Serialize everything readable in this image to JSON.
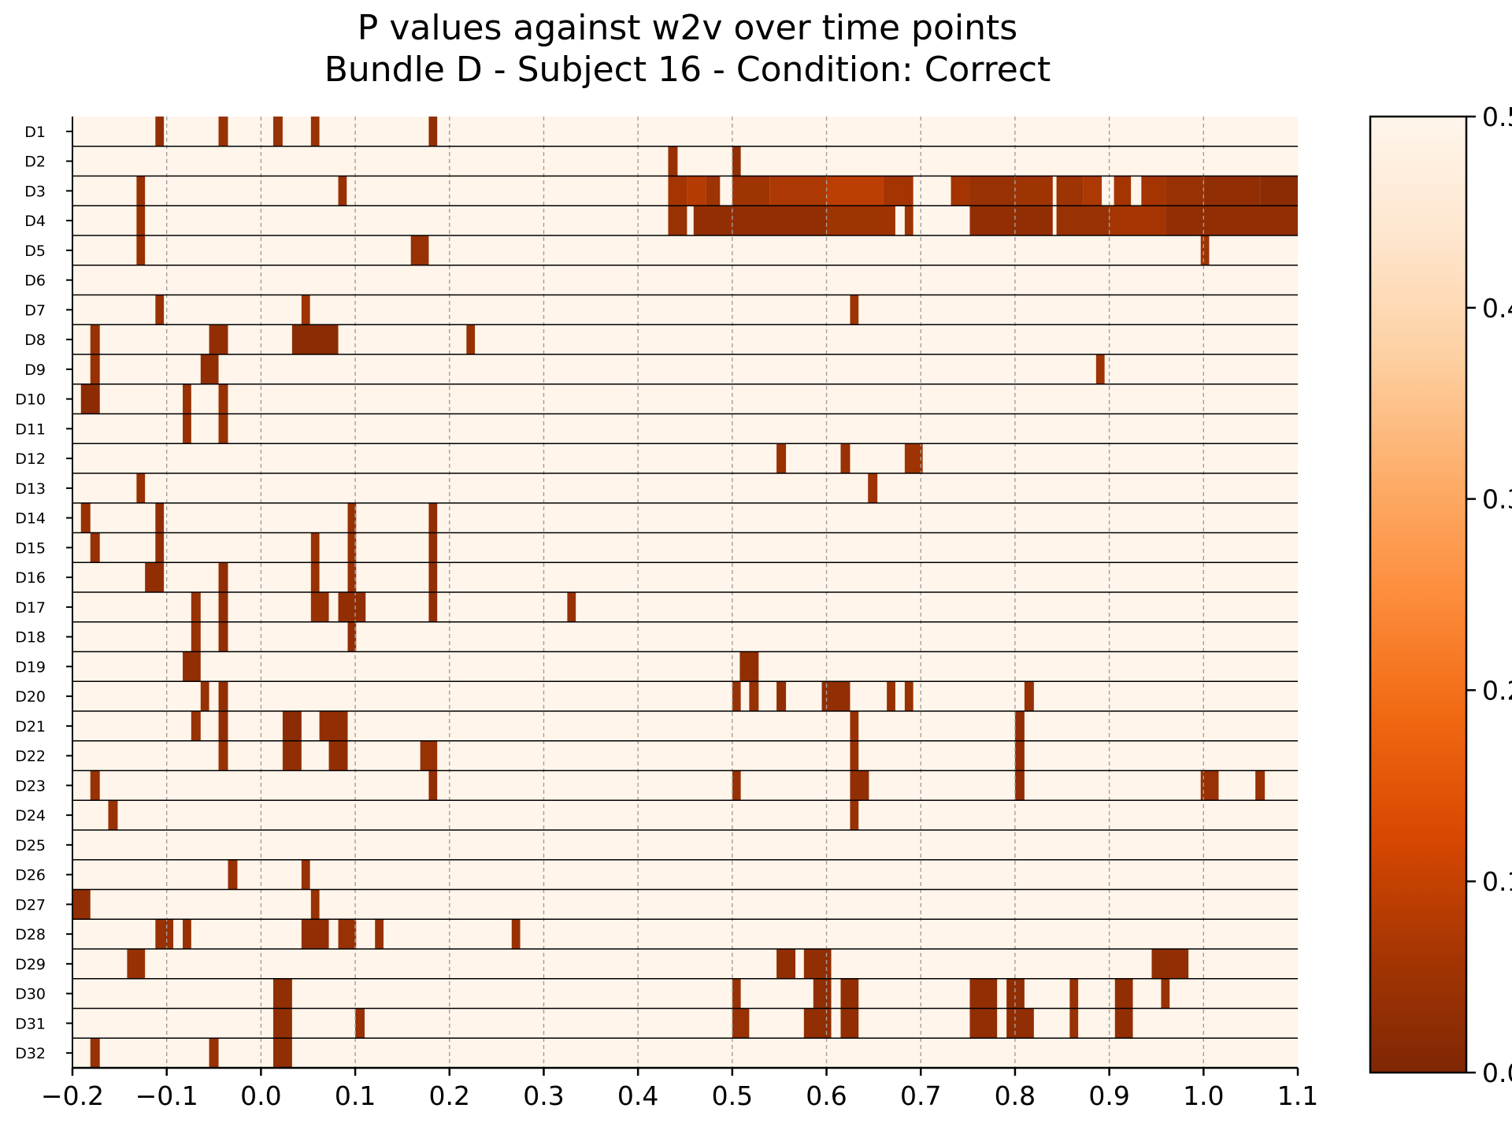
{
  "chart_data": {
    "type": "heatmap",
    "title": "P values against w2v over time points",
    "subtitle": "Bundle D - Subject 16 - Condition: Correct",
    "xlabel": "",
    "ylabel": "",
    "xlim": [
      -0.2,
      1.1
    ],
    "x_ticks": [
      "−0.2",
      "−0.1",
      "0.0",
      "0.1",
      "0.2",
      "0.3",
      "0.4",
      "0.5",
      "0.6",
      "0.7",
      "0.8",
      "0.9",
      "1.0",
      "1.1"
    ],
    "x_tick_values": [
      -0.2,
      -0.1,
      0.0,
      0.1,
      0.2,
      0.3,
      0.4,
      0.5,
      0.6,
      0.7,
      0.8,
      0.9,
      1.0,
      1.1
    ],
    "grid": "vertical dashed at x ticks",
    "rows": [
      "D1",
      "D2",
      "D3",
      "D4",
      "D5",
      "D6",
      "D7",
      "D8",
      "D9",
      "D10",
      "D11",
      "D12",
      "D13",
      "D14",
      "D15",
      "D16",
      "D17",
      "D18",
      "D19",
      "D20",
      "D21",
      "D22",
      "D23",
      "D24",
      "D25",
      "D26",
      "D27",
      "D28",
      "D29",
      "D30",
      "D31",
      "D32"
    ],
    "background_p": 0.5,
    "colorbar": {
      "min": 0.0,
      "max": 0.5,
      "ticks": [
        "0.0",
        "0.1",
        "0.2",
        "0.3",
        "0.4",
        "0.5"
      ],
      "tick_values": [
        0.0,
        0.1,
        0.2,
        0.3,
        0.4,
        0.5
      ],
      "colormap": "Oranges_r",
      "colors": [
        "#7f2704",
        "#a63603",
        "#d94801",
        "#f16913",
        "#fd8d3c",
        "#fdae6b",
        "#fdd0a2",
        "#fee6ce",
        "#fff5eb"
      ]
    },
    "segments": {
      "D1": [
        [
          -0.112,
          -0.103,
          0.03
        ],
        [
          -0.045,
          -0.035,
          0.04
        ],
        [
          0.013,
          0.023,
          0.04
        ],
        [
          0.053,
          0.062,
          0.04
        ],
        [
          0.178,
          0.187,
          0.03
        ]
      ],
      "D2": [
        [
          0.432,
          0.442,
          0.04
        ],
        [
          0.5,
          0.509,
          0.03
        ]
      ],
      "D3": [
        [
          -0.132,
          -0.123,
          0.04
        ],
        [
          0.082,
          0.091,
          0.04
        ],
        [
          0.432,
          0.452,
          0.06
        ],
        [
          0.452,
          0.472,
          0.08
        ],
        [
          0.472,
          0.487,
          0.05
        ],
        [
          0.5,
          0.54,
          0.05
        ],
        [
          0.54,
          0.6,
          0.07
        ],
        [
          0.6,
          0.66,
          0.09
        ],
        [
          0.66,
          0.692,
          0.06
        ],
        [
          0.732,
          0.752,
          0.06
        ],
        [
          0.752,
          0.8,
          0.04
        ],
        [
          0.8,
          0.84,
          0.05
        ],
        [
          0.844,
          0.872,
          0.05
        ],
        [
          0.872,
          0.892,
          0.07
        ],
        [
          0.905,
          0.923,
          0.06
        ],
        [
          0.934,
          0.96,
          0.06
        ],
        [
          0.96,
          1.0,
          0.04
        ],
        [
          1.0,
          1.06,
          0.03
        ],
        [
          1.06,
          1.1,
          0.02
        ]
      ],
      "D4": [
        [
          -0.132,
          -0.123,
          0.04
        ],
        [
          0.432,
          0.452,
          0.04
        ],
        [
          0.459,
          0.5,
          0.03
        ],
        [
          0.5,
          0.6,
          0.03
        ],
        [
          0.6,
          0.673,
          0.05
        ],
        [
          0.683,
          0.692,
          0.05
        ],
        [
          0.752,
          0.84,
          0.03
        ],
        [
          0.844,
          0.9,
          0.04
        ],
        [
          0.9,
          0.96,
          0.06
        ],
        [
          0.96,
          1.1,
          0.03
        ]
      ],
      "D5": [
        [
          -0.132,
          -0.123,
          0.04
        ],
        [
          0.159,
          0.178,
          0.04
        ],
        [
          0.997,
          1.006,
          0.05
        ]
      ],
      "D6": [],
      "D7": [
        [
          -0.112,
          -0.103,
          0.04
        ],
        [
          0.043,
          0.052,
          0.05
        ],
        [
          0.625,
          0.634,
          0.05
        ]
      ],
      "D8": [
        [
          -0.181,
          -0.171,
          0.04
        ],
        [
          -0.055,
          -0.035,
          0.03
        ],
        [
          0.033,
          0.082,
          0.02
        ],
        [
          0.218,
          0.227,
          0.04
        ]
      ],
      "D9": [
        [
          -0.181,
          -0.171,
          0.04
        ],
        [
          -0.064,
          -0.045,
          0.03
        ],
        [
          0.886,
          0.895,
          0.05
        ]
      ],
      "D10": [
        [
          -0.191,
          -0.171,
          0.02
        ],
        [
          -0.083,
          -0.074,
          0.04
        ],
        [
          -0.045,
          -0.035,
          0.04
        ]
      ],
      "D11": [
        [
          -0.083,
          -0.074,
          0.04
        ],
        [
          -0.045,
          -0.035,
          0.04
        ]
      ],
      "D12": [
        [
          0.547,
          0.557,
          0.04
        ],
        [
          0.615,
          0.625,
          0.04
        ],
        [
          0.683,
          0.702,
          0.05
        ]
      ],
      "D13": [
        [
          -0.132,
          -0.123,
          0.04
        ],
        [
          0.644,
          0.654,
          0.05
        ]
      ],
      "D14": [
        [
          -0.191,
          -0.181,
          0.04
        ],
        [
          -0.112,
          -0.103,
          0.03
        ],
        [
          0.092,
          0.101,
          0.04
        ],
        [
          0.178,
          0.187,
          0.03
        ]
      ],
      "D15": [
        [
          -0.181,
          -0.171,
          0.04
        ],
        [
          -0.112,
          -0.103,
          0.03
        ],
        [
          0.053,
          0.062,
          0.04
        ],
        [
          0.092,
          0.101,
          0.04
        ],
        [
          0.178,
          0.187,
          0.03
        ]
      ],
      "D16": [
        [
          -0.123,
          -0.103,
          0.03
        ],
        [
          -0.045,
          -0.035,
          0.03
        ],
        [
          0.053,
          0.062,
          0.04
        ],
        [
          0.092,
          0.101,
          0.04
        ],
        [
          0.178,
          0.187,
          0.03
        ]
      ],
      "D17": [
        [
          -0.074,
          -0.064,
          0.04
        ],
        [
          -0.045,
          -0.035,
          0.03
        ],
        [
          0.053,
          0.072,
          0.04
        ],
        [
          0.082,
          0.111,
          0.03
        ],
        [
          0.178,
          0.187,
          0.03
        ],
        [
          0.325,
          0.334,
          0.04
        ]
      ],
      "D18": [
        [
          -0.074,
          -0.064,
          0.04
        ],
        [
          -0.045,
          -0.035,
          0.03
        ],
        [
          0.092,
          0.101,
          0.03
        ]
      ],
      "D19": [
        [
          -0.083,
          -0.064,
          0.03
        ],
        [
          0.508,
          0.528,
          0.03
        ]
      ],
      "D20": [
        [
          -0.064,
          -0.055,
          0.04
        ],
        [
          -0.045,
          -0.035,
          0.03
        ],
        [
          0.5,
          0.509,
          0.04
        ],
        [
          0.518,
          0.528,
          0.04
        ],
        [
          0.547,
          0.557,
          0.03
        ],
        [
          0.595,
          0.625,
          0.03
        ],
        [
          0.664,
          0.673,
          0.04
        ],
        [
          0.683,
          0.692,
          0.04
        ],
        [
          0.81,
          0.82,
          0.04
        ]
      ],
      "D21": [
        [
          -0.074,
          -0.064,
          0.04
        ],
        [
          -0.045,
          -0.035,
          0.03
        ],
        [
          0.023,
          0.043,
          0.02
        ],
        [
          0.062,
          0.092,
          0.03
        ],
        [
          0.625,
          0.634,
          0.04
        ],
        [
          0.8,
          0.81,
          0.03
        ]
      ],
      "D22": [
        [
          -0.045,
          -0.035,
          0.04
        ],
        [
          0.023,
          0.043,
          0.03
        ],
        [
          0.072,
          0.092,
          0.03
        ],
        [
          0.169,
          0.187,
          0.04
        ],
        [
          0.625,
          0.634,
          0.04
        ],
        [
          0.8,
          0.81,
          0.03
        ]
      ],
      "D23": [
        [
          -0.181,
          -0.171,
          0.04
        ],
        [
          0.178,
          0.187,
          0.03
        ],
        [
          0.5,
          0.509,
          0.04
        ],
        [
          0.625,
          0.645,
          0.03
        ],
        [
          0.8,
          0.81,
          0.03
        ],
        [
          0.997,
          1.016,
          0.04
        ],
        [
          1.055,
          1.065,
          0.04
        ]
      ],
      "D24": [
        [
          -0.162,
          -0.152,
          0.04
        ],
        [
          0.625,
          0.634,
          0.04
        ]
      ],
      "D25": [],
      "D26": [
        [
          -0.035,
          -0.025,
          0.04
        ],
        [
          0.043,
          0.052,
          0.04
        ]
      ],
      "D27": [
        [
          -0.2,
          -0.181,
          0.03
        ],
        [
          0.053,
          0.062,
          0.04
        ]
      ],
      "D28": [
        [
          -0.112,
          -0.093,
          0.04
        ],
        [
          -0.083,
          -0.074,
          0.04
        ],
        [
          0.043,
          0.072,
          0.03
        ],
        [
          0.082,
          0.101,
          0.04
        ],
        [
          0.121,
          0.13,
          0.04
        ],
        [
          0.266,
          0.275,
          0.04
        ]
      ],
      "D29": [
        [
          -0.142,
          -0.123,
          0.04
        ],
        [
          0.547,
          0.567,
          0.03
        ],
        [
          0.576,
          0.605,
          0.03
        ],
        [
          0.945,
          0.984,
          0.03
        ]
      ],
      "D30": [
        [
          0.013,
          0.033,
          0.03
        ],
        [
          0.5,
          0.509,
          0.04
        ],
        [
          0.586,
          0.605,
          0.03
        ],
        [
          0.615,
          0.634,
          0.03
        ],
        [
          0.752,
          0.781,
          0.03
        ],
        [
          0.791,
          0.81,
          0.03
        ],
        [
          0.858,
          0.867,
          0.04
        ],
        [
          0.906,
          0.925,
          0.03
        ],
        [
          0.955,
          0.964,
          0.04
        ]
      ],
      "D31": [
        [
          0.013,
          0.033,
          0.03
        ],
        [
          0.1,
          0.11,
          0.04
        ],
        [
          0.5,
          0.518,
          0.04
        ],
        [
          0.576,
          0.605,
          0.03
        ],
        [
          0.615,
          0.634,
          0.03
        ],
        [
          0.752,
          0.781,
          0.03
        ],
        [
          0.791,
          0.82,
          0.03
        ],
        [
          0.858,
          0.867,
          0.04
        ],
        [
          0.906,
          0.925,
          0.03
        ]
      ],
      "D32": [
        [
          -0.181,
          -0.171,
          0.04
        ],
        [
          -0.055,
          -0.045,
          0.04
        ],
        [
          0.013,
          0.033,
          0.03
        ]
      ]
    }
  }
}
